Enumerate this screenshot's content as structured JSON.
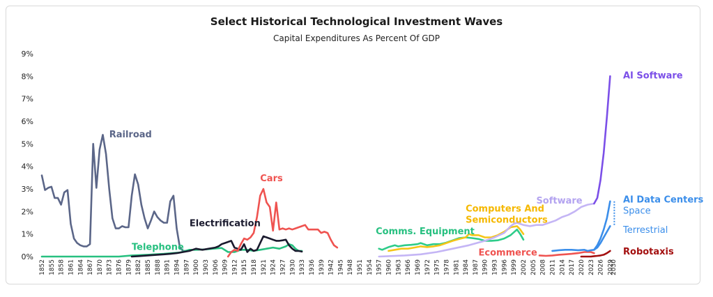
{
  "chart_data": {
    "type": "line",
    "title": "Select Historical Technological Investment Waves",
    "subtitle": "Capital Expenditures As Percent Of GDP",
    "xlabel": "",
    "ylabel": "",
    "xlim": [
      1852,
      2030
    ],
    "ylim": [
      0,
      9
    ],
    "y_ticks": [
      0,
      1,
      2,
      3,
      4,
      5,
      6,
      7,
      8,
      9
    ],
    "y_tick_labels": [
      "0%",
      "1%",
      "2%",
      "3%",
      "4%",
      "5%",
      "6%",
      "7%",
      "8%",
      "9%"
    ],
    "x_ticks": [
      1852,
      1855,
      1858,
      1861,
      1864,
      1867,
      1870,
      1873,
      1876,
      1879,
      1882,
      1885,
      1888,
      1891,
      1894,
      1897,
      1900,
      1903,
      1906,
      1909,
      1912,
      1915,
      1918,
      1921,
      1924,
      1927,
      1930,
      1933,
      1936,
      1939,
      1942,
      1945,
      1948,
      1951,
      1954,
      1957,
      1960,
      1963,
      1966,
      1969,
      1972,
      1975,
      1978,
      1981,
      1984,
      1987,
      1990,
      1993,
      1996,
      1999,
      2002,
      2005,
      2008,
      2011,
      2014,
      2017,
      2020,
      2023,
      2026,
      2029,
      2030
    ],
    "grid": false,
    "legend": "inline labels",
    "series": [
      {
        "name": "Railroad",
        "color": "#5b6688",
        "x": [
          1852,
          1853,
          1854,
          1855,
          1856,
          1857,
          1858,
          1859,
          1860,
          1861,
          1862,
          1863,
          1864,
          1865,
          1866,
          1867,
          1868,
          1869,
          1870,
          1871,
          1872,
          1873,
          1874,
          1875,
          1876,
          1877,
          1878,
          1879,
          1880,
          1881,
          1882,
          1883,
          1884,
          1885,
          1886,
          1887,
          1888,
          1889,
          1890,
          1891,
          1892,
          1893,
          1894,
          1895,
          1896,
          1897
        ],
        "y": [
          3.6,
          2.95,
          3.05,
          3.1,
          2.6,
          2.6,
          2.3,
          2.85,
          2.95,
          1.45,
          0.8,
          0.6,
          0.5,
          0.45,
          0.45,
          0.55,
          5.0,
          3.05,
          4.75,
          5.4,
          4.55,
          3.0,
          1.7,
          1.25,
          1.25,
          1.35,
          1.3,
          1.3,
          2.7,
          3.65,
          3.2,
          2.3,
          1.7,
          1.25,
          1.6,
          2.0,
          1.75,
          1.6,
          1.5,
          1.5,
          2.45,
          2.7,
          1.25,
          0.4,
          0.25,
          0.25
        ]
      },
      {
        "name": "Telephone",
        "color": "#27c080",
        "x": [
          1852,
          1876,
          1880,
          1885,
          1890,
          1895,
          1898,
          1900,
          1903,
          1906,
          1908,
          1910,
          1912,
          1914,
          1916,
          1918,
          1920,
          1922,
          1924,
          1926,
          1928,
          1929,
          1930,
          1931,
          1932,
          1933
        ],
        "y": [
          0,
          0,
          0.05,
          0.08,
          0.12,
          0.18,
          0.3,
          0.3,
          0.32,
          0.36,
          0.38,
          0.2,
          0.2,
          0.3,
          0.3,
          0.25,
          0.3,
          0.35,
          0.4,
          0.35,
          0.45,
          0.55,
          0.5,
          0.35,
          0.25,
          0.25
        ]
      },
      {
        "name": "Electrification",
        "color": "#1a1a2e",
        "x": [
          1880,
          1882,
          1885,
          1888,
          1890,
          1892,
          1894,
          1896,
          1898,
          1900,
          1902,
          1904,
          1906,
          1907,
          1908,
          1909,
          1910,
          1911,
          1912,
          1913,
          1914,
          1915,
          1916,
          1917,
          1918,
          1919,
          1920,
          1921,
          1922,
          1923,
          1924,
          1925,
          1926,
          1927,
          1928,
          1929,
          1930,
          1931,
          1932,
          1933
        ],
        "y": [
          0,
          0.02,
          0.05,
          0.08,
          0.1,
          0.12,
          0.15,
          0.2,
          0.25,
          0.35,
          0.3,
          0.35,
          0.4,
          0.45,
          0.55,
          0.6,
          0.65,
          0.7,
          0.4,
          0.35,
          0.3,
          0.55,
          0.2,
          0.35,
          0.25,
          0.3,
          0.6,
          0.9,
          0.85,
          0.8,
          0.75,
          0.7,
          0.7,
          0.72,
          0.75,
          0.5,
          0.35,
          0.25,
          0.25,
          0.22
        ]
      },
      {
        "name": "Cars",
        "color": "#ef5350",
        "x": [
          1910,
          1911,
          1912,
          1913,
          1914,
          1915,
          1916,
          1917,
          1918,
          1919,
          1920,
          1921,
          1922,
          1923,
          1924,
          1925,
          1926,
          1927,
          1928,
          1929,
          1930,
          1931,
          1932,
          1933,
          1934,
          1935,
          1936,
          1937,
          1938,
          1939,
          1940,
          1941,
          1942,
          1943,
          1944
        ],
        "y": [
          0,
          0.2,
          0.3,
          0.25,
          0.55,
          0.8,
          0.75,
          0.85,
          1.05,
          1.75,
          2.7,
          3.0,
          2.4,
          2.2,
          1.15,
          2.4,
          1.2,
          1.25,
          1.2,
          1.25,
          1.2,
          1.25,
          1.3,
          1.35,
          1.4,
          1.2,
          1.2,
          1.2,
          1.2,
          1.05,
          1.1,
          1.05,
          0.75,
          0.5,
          0.4
        ]
      },
      {
        "name": "Comms. Equipment",
        "color": "#2ecc8a",
        "x": [
          1957,
          1958,
          1960,
          1962,
          1963,
          1965,
          1967,
          1969,
          1970,
          1972,
          1974,
          1976,
          1978,
          1980,
          1982,
          1984,
          1986,
          1988,
          1990,
          1992,
          1994,
          1996,
          1998,
          2000,
          2001,
          2002
        ],
        "y": [
          0.35,
          0.3,
          0.42,
          0.5,
          0.45,
          0.5,
          0.52,
          0.55,
          0.6,
          0.5,
          0.55,
          0.55,
          0.62,
          0.72,
          0.82,
          0.85,
          0.82,
          0.78,
          0.7,
          0.7,
          0.72,
          0.8,
          0.95,
          1.2,
          1.0,
          0.75
        ]
      },
      {
        "name": "Computers And Semiconductors",
        "color": "#f5c518",
        "x": [
          1960,
          1962,
          1964,
          1966,
          1968,
          1970,
          1972,
          1974,
          1976,
          1978,
          1980,
          1982,
          1984,
          1985,
          1986,
          1988,
          1990,
          1992,
          1994,
          1996,
          1998,
          2000,
          2001,
          2002
        ],
        "y": [
          0.25,
          0.3,
          0.35,
          0.35,
          0.4,
          0.45,
          0.42,
          0.45,
          0.5,
          0.6,
          0.7,
          0.78,
          0.85,
          1.0,
          0.95,
          0.95,
          0.85,
          0.85,
          0.95,
          1.1,
          1.3,
          1.35,
          1.2,
          1.0
        ]
      },
      {
        "name": "Software",
        "color": "#c4b5f5",
        "x": [
          1957,
          1960,
          1965,
          1970,
          1975,
          1980,
          1985,
          1990,
          1993,
          1996,
          1998,
          1999,
          2000,
          2001,
          2002,
          2004,
          2006,
          2008,
          2010,
          2012,
          2014,
          2016,
          2018,
          2020,
          2022,
          2024
        ],
        "y": [
          0,
          0.02,
          0.05,
          0.1,
          0.2,
          0.35,
          0.5,
          0.7,
          0.85,
          1.05,
          1.35,
          1.45,
          1.5,
          1.45,
          1.4,
          1.35,
          1.4,
          1.4,
          1.5,
          1.6,
          1.75,
          1.85,
          2.0,
          2.2,
          2.3,
          2.35
        ]
      },
      {
        "name": "AI Software",
        "color": "#7b4fe8",
        "x": [
          2024,
          2025,
          2026,
          2027,
          2028,
          2029
        ],
        "y": [
          2.35,
          2.6,
          3.4,
          4.6,
          6.2,
          8.0
        ]
      },
      {
        "name": "Ecommerce",
        "color": "#ef5350",
        "x": [
          2007,
          2009,
          2011,
          2013,
          2015,
          2017,
          2019,
          2021,
          2023,
          2024
        ],
        "y": [
          0.05,
          0.03,
          0.05,
          0.08,
          0.1,
          0.12,
          0.15,
          0.2,
          0.2,
          0.15
        ]
      },
      {
        "name": "AI Data Centers",
        "color": "#3b8eea",
        "x": [
          2011,
          2013,
          2015,
          2017,
          2019,
          2021,
          2022,
          2023,
          2024
        ],
        "y": [
          0.25,
          0.28,
          0.3,
          0.3,
          0.28,
          0.3,
          0.25,
          0.28,
          0.3
        ]
      },
      {
        "name": "Space",
        "color": "#3b8eea",
        "x": [
          2024,
          2025,
          2026,
          2027,
          2028,
          2029
        ],
        "y": [
          0.3,
          0.5,
          0.8,
          1.2,
          1.7,
          2.45
        ]
      },
      {
        "name": "Terrestrial",
        "color": "#3b8eea",
        "x": [
          2024,
          2025,
          2026,
          2027,
          2028,
          2029
        ],
        "y": [
          0.3,
          0.4,
          0.6,
          0.85,
          1.1,
          1.35
        ]
      },
      {
        "name": "Robotaxis",
        "color": "#a30f0f",
        "x": [
          2020,
          2021,
          2022,
          2023,
          2024,
          2025,
          2026,
          2027,
          2028,
          2029
        ],
        "y": [
          0,
          0,
          0,
          0,
          0.02,
          0.03,
          0.05,
          0.08,
          0.15,
          0.25
        ]
      }
    ],
    "annotations": [
      {
        "text": "Railroad",
        "color": "#5b6688",
        "x": 1873,
        "y": 5.45,
        "bold": true
      },
      {
        "text": "Telephone",
        "color": "#27c080",
        "x": 1880,
        "y": 0.45,
        "bold": true
      },
      {
        "text": "Electrification",
        "color": "#1a1a2e",
        "x": 1898,
        "y": 1.5,
        "bold": true
      },
      {
        "text": "Cars",
        "color": "#ef5350",
        "x": 1920,
        "y": 3.5,
        "bold": true
      },
      {
        "text": "Comms. Equipment",
        "color": "#27c080",
        "x": 1956,
        "y": 1.15,
        "bold": true
      },
      {
        "text": "Computers And",
        "color": "#f5b800",
        "x": 1984,
        "y": 2.15,
        "bold": true
      },
      {
        "text": "Semiconductors",
        "color": "#f5b800",
        "x": 1984,
        "y": 1.65,
        "bold": true
      },
      {
        "text": "Software",
        "color": "#b3a3f0",
        "x": 2006,
        "y": 2.5,
        "bold": true
      },
      {
        "text": "Ecommerce",
        "color": "#ef5350",
        "x": 1988,
        "y": 0.2,
        "bold": true
      },
      {
        "text": "AI Software",
        "color": "#7b4fe8",
        "x": 2030,
        "y": 8.05,
        "bold": true
      },
      {
        "text": "AI Data Centers",
        "color": "#3b8eea",
        "x": 2030,
        "y": 2.55,
        "bold": true
      },
      {
        "text": "Space",
        "color": "#3b8eea",
        "x": 2030,
        "y": 2.05,
        "bold": false
      },
      {
        "text": "Terrestrial",
        "color": "#3b8eea",
        "x": 2030,
        "y": 1.2,
        "bold": false
      },
      {
        "text": "Robotaxis",
        "color": "#a30f0f",
        "x": 2030,
        "y": 0.25,
        "bold": true
      }
    ]
  }
}
